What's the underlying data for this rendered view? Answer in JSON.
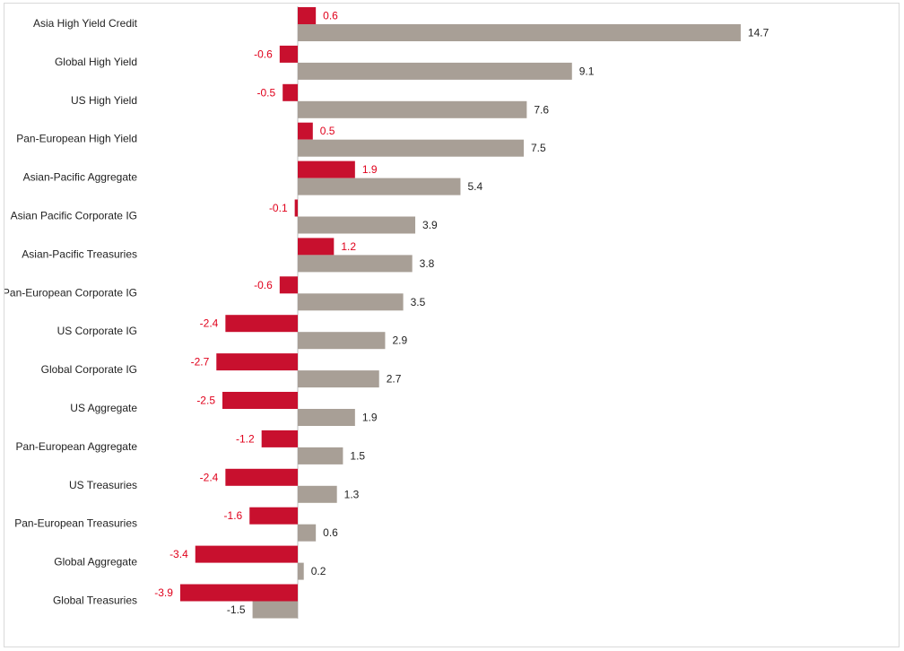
{
  "chart_data": {
    "type": "bar",
    "orientation": "horizontal",
    "categories": [
      "Asia High Yield Credit",
      "Global High Yield",
      "US High Yield",
      "Pan-European High Yield",
      "Asian-Pacific Aggregate",
      "Asian Pacific Corporate IG",
      "Asian-Pacific Treasuries",
      "Pan-European Corporate IG",
      "US Corporate IG",
      "Global Corporate IG",
      "US Aggregate",
      "Pan-European Aggregate",
      "US Treasuries",
      "Pan-European Treasuries",
      "Global Aggregate",
      "Global Treasuries"
    ],
    "series": [
      {
        "color": "#c8102e",
        "label_color": "#e0001b",
        "values": [
          0.6,
          -0.6,
          -0.5,
          0.5,
          1.9,
          -0.1,
          1.2,
          -0.6,
          -2.4,
          -2.7,
          -2.5,
          -1.2,
          -2.4,
          -1.6,
          -3.4,
          -3.9
        ],
        "labels": [
          "0.6",
          "-0.6",
          "-0.5",
          "0.5",
          "1.9",
          "-0.1",
          "1.2",
          "-0.6",
          "-2.4",
          "-2.7",
          "-2.5",
          "-1.2",
          "-2.4",
          "-1.6",
          "-3.4",
          "-3.9"
        ]
      },
      {
        "color": "#a89f96",
        "label_color": "#222222",
        "values": [
          14.7,
          9.1,
          7.6,
          7.5,
          5.4,
          3.9,
          3.8,
          3.5,
          2.9,
          2.7,
          1.9,
          1.5,
          1.3,
          0.6,
          0.2,
          -1.5
        ],
        "labels": [
          "14.7",
          "9.1",
          "7.6",
          "7.5",
          "5.4",
          "3.9",
          "3.8",
          "3.5",
          "2.9",
          "2.7",
          "1.9",
          "1.5",
          "1.3",
          "0.6",
          "0.2",
          "-1.5"
        ]
      }
    ],
    "xlim": [
      -10,
      20
    ],
    "grid": false,
    "legend": "none"
  }
}
